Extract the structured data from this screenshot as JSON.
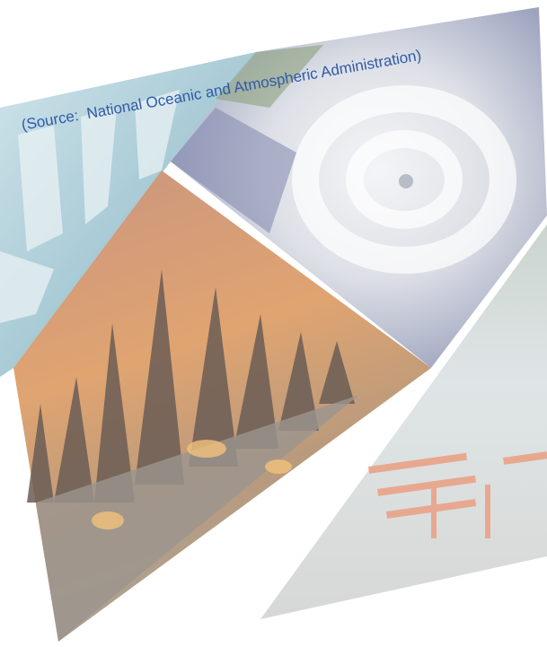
{
  "caption": "(Source:  National Oceanic and Atmospheric Administration)"
}
